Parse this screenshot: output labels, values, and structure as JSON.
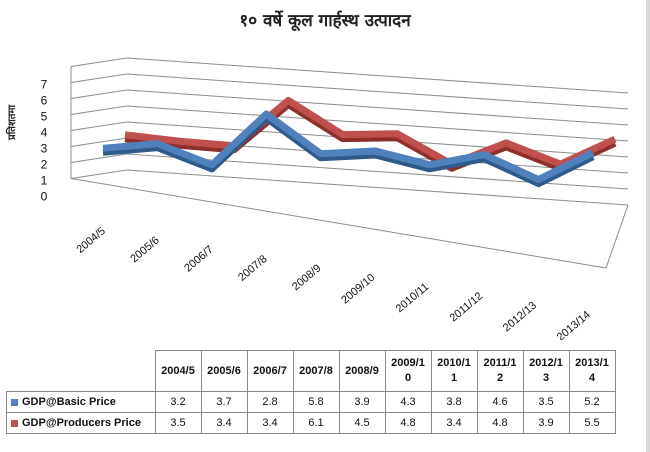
{
  "title": "१० वर्षे कूल गार्हस्थ उत्पादन",
  "chart_data": {
    "type": "line",
    "title": "१० वर्षे कूल गार्हस्थ उत्पादन",
    "ylabel": "प्रतिशतमा",
    "xlabel": "",
    "ylim": [
      0,
      7
    ],
    "y_ticks": [
      "0",
      "1",
      "2",
      "3",
      "4",
      "5",
      "6",
      "7"
    ],
    "categories": [
      "2004/5",
      "2005/6",
      "2006/7",
      "2007/8",
      "2008/9",
      "2009/10",
      "2010/11",
      "2011/12",
      "2012/13",
      "2013/14"
    ],
    "table_headers": [
      "2004/5",
      "2005/6",
      "2006/7",
      "2007/8",
      "2008/9",
      "2009/1\n0",
      "2010/1\n1",
      "2011/1\n2",
      "2012/1\n3",
      "2013/1\n4"
    ],
    "grid": true,
    "legend": "data-table",
    "series": [
      {
        "name": "GDP@Basic Price",
        "color": "#4f81bd",
        "values": [
          3.2,
          3.7,
          2.8,
          5.8,
          3.9,
          4.3,
          3.8,
          4.6,
          3.5,
          5.2
        ],
        "labels": [
          "3.2",
          "3.7",
          "2.8",
          "5.8",
          "3.9",
          "4.3",
          "3.8",
          "4.6",
          "3.5",
          "5.2"
        ]
      },
      {
        "name": "GDP@Producers Price",
        "color": "#c0504d",
        "values": [
          3.5,
          3.4,
          3.4,
          6.1,
          4.5,
          4.8,
          3.4,
          4.8,
          3.9,
          5.5
        ],
        "labels": [
          "3.5",
          "3.4",
          "3.4",
          "6.1",
          "4.5",
          "4.8",
          "3.4",
          "4.8",
          "3.9",
          "5.5"
        ]
      }
    ]
  }
}
